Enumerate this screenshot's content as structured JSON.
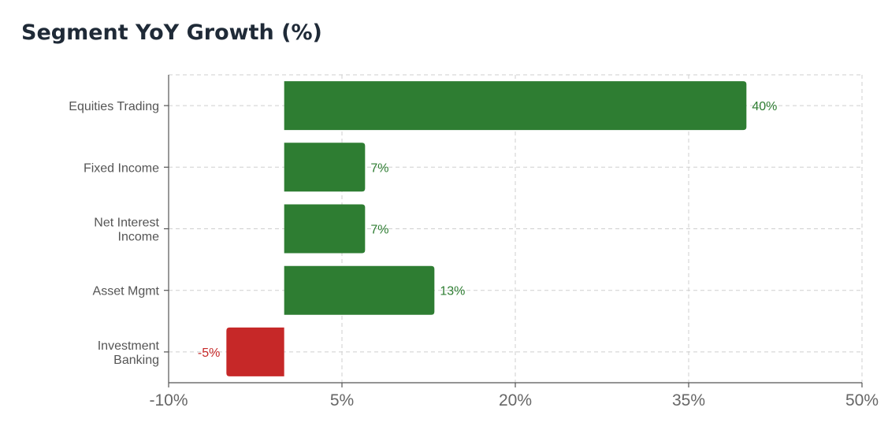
{
  "chart_data": {
    "type": "bar",
    "orientation": "horizontal",
    "title": "Segment YoY Growth (%)",
    "categories": [
      "Equities Trading",
      "Fixed Income",
      "Net Interest Income",
      "Asset Mgmt",
      "Investment Banking"
    ],
    "category_lines": [
      [
        "Equities Trading"
      ],
      [
        "Fixed Income"
      ],
      [
        "Net Interest",
        "Income"
      ],
      [
        "Asset Mgmt"
      ],
      [
        "Investment",
        "Banking"
      ]
    ],
    "values": [
      40,
      7,
      7,
      13,
      -5
    ],
    "value_labels": [
      "40%",
      "7%",
      "7%",
      "13%",
      "-5%"
    ],
    "xlim": [
      -10,
      50
    ],
    "xticks": [
      -10,
      5,
      20,
      35,
      50
    ],
    "xtick_labels": [
      "-10%",
      "5%",
      "20%",
      "35%",
      "50%"
    ],
    "grid": true,
    "colors": {
      "positive": "#2e7d32",
      "negative": "#c62828",
      "axis": "#555555",
      "grid": "#cfcfcf"
    }
  }
}
